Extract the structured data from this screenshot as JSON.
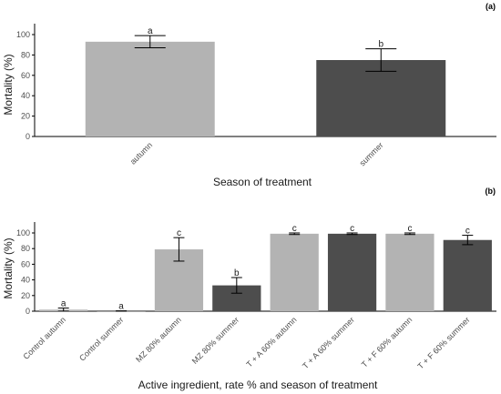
{
  "colors": {
    "autumn": "#b3b3b3",
    "summer": "#4d4d4d",
    "axis": "#000000",
    "errorbar": "#000000"
  },
  "chart_data": [
    {
      "type": "bar",
      "panel": "(a)",
      "categories": [
        "autumn",
        "summer"
      ],
      "values": [
        93,
        75
      ],
      "errors": [
        6,
        11
      ],
      "significance": [
        "a",
        "b"
      ],
      "xlabel": "Season of treatment",
      "ylabel": "Mortality (%)",
      "ylim": [
        0,
        100
      ],
      "yticks": [
        0,
        20,
        40,
        60,
        80,
        100
      ],
      "grid": false
    },
    {
      "type": "bar",
      "panel": "(b)",
      "categories": [
        "Control autumn",
        "Control summer",
        "MZ 80% autumn",
        "MZ 80% summer",
        "T + A 60% autumn",
        "T + A 60% summer",
        "T + F 60% autumn",
        "T + F 60% summer"
      ],
      "values": [
        2,
        0,
        79,
        33,
        99,
        99,
        99,
        91
      ],
      "errors": [
        2,
        0.5,
        15,
        10,
        1,
        1,
        1,
        6
      ],
      "significance": [
        "a",
        "a",
        "c",
        "b",
        "c",
        "c",
        "c",
        "c"
      ],
      "xlabel": "Active ingredient, rate % and season of treatment",
      "ylabel": "Mortality (%)",
      "ylim": [
        0,
        100
      ],
      "yticks": [
        0,
        20,
        40,
        60,
        80,
        100
      ],
      "grid": false
    }
  ]
}
